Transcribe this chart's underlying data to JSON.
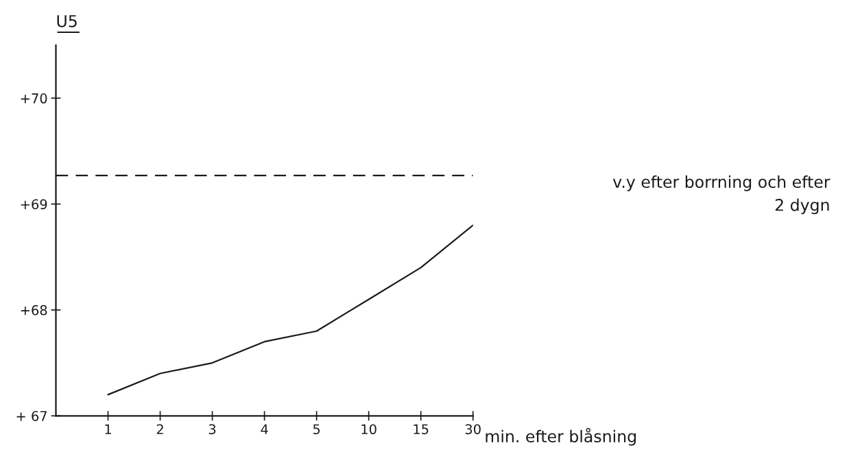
{
  "chart_data": {
    "type": "line",
    "ylabel": "U5",
    "xlabel": "min. efter blåsning",
    "categories": [
      "1",
      "2",
      "3",
      "4",
      "5",
      "10",
      "15",
      "30"
    ],
    "series": [
      {
        "color": "#1a1a1a",
        "values": [
          67.2,
          67.4,
          67.5,
          67.7,
          67.8,
          68.1,
          68.4,
          68.8
        ]
      }
    ],
    "ylim": [
      67,
      70.5
    ],
    "yticks": [
      {
        "value": 67,
        "label": "+ 67"
      },
      {
        "value": 68,
        "label": "+68"
      },
      {
        "value": 69,
        "label": "+69"
      },
      {
        "value": 70,
        "label": "+70"
      }
    ],
    "ref_lines": [
      {
        "axis": "y",
        "value": 69.27,
        "label": "v.y efter borrning och efter\n2 dygn",
        "color": "#1a1a1a",
        "line_style": "dashed"
      }
    ],
    "grid": false,
    "legend": false,
    "marker": "none",
    "line_style": "solid"
  }
}
